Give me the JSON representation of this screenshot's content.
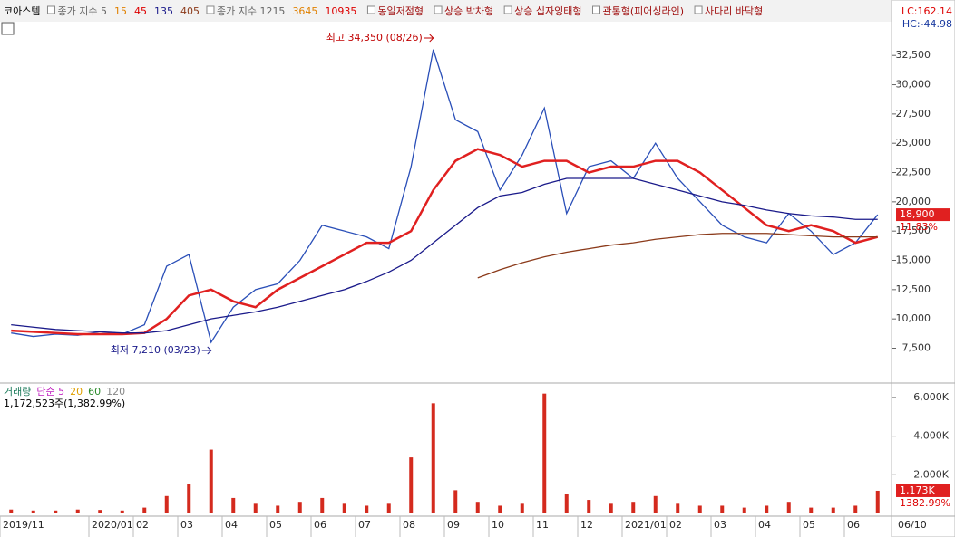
{
  "toolbar": {
    "symbol": "코아스템",
    "items": [
      "15",
      "종가 지수 1215",
      "3645",
      "10935"
    ],
    "patterns": [
      "동일저점형",
      "상승 박차형",
      "상승 십자잉태형",
      "관통형(피어싱라인)",
      "사다리 바닥형"
    ],
    "lc": "LC:162.14",
    "hc": "HC:-44.98"
  },
  "chart_data": [
    {
      "type": "line",
      "categories": [
        "2019/11",
        null,
        null,
        null,
        "2020/01",
        null,
        "02",
        null,
        "03",
        null,
        "04",
        null,
        "05",
        null,
        "06",
        null,
        "07",
        null,
        "08",
        null,
        "09",
        null,
        "10",
        null,
        "11",
        null,
        "12",
        null,
        "2021/01",
        null,
        "02",
        null,
        "03",
        null,
        "04",
        null,
        "05",
        null,
        "06",
        null
      ],
      "last_date": "06/10",
      "series": [
        {
          "name": "종가 지수 5",
          "color": "#2a4fb8",
          "values": [
            8800,
            8500,
            8700,
            8600,
            8900,
            8700,
            9500,
            14500,
            15500,
            8000,
            11000,
            12500,
            13000,
            15000,
            18000,
            17500,
            17000,
            16000,
            23000,
            33000,
            27000,
            26000,
            21000,
            24000,
            28000,
            19000,
            23000,
            23500,
            22000,
            25000,
            22000,
            20000,
            18000,
            17000,
            16500,
            19000,
            17500,
            15500,
            16500,
            18900
          ]
        },
        {
          "name": "45",
          "color": "#e02020",
          "values": [
            9000,
            8900,
            8800,
            8700,
            8700,
            8700,
            8800,
            10000,
            12000,
            12500,
            11500,
            11000,
            12500,
            13500,
            14500,
            15500,
            16500,
            16500,
            17500,
            21000,
            23500,
            24500,
            24000,
            23000,
            23500,
            23500,
            22500,
            23000,
            23000,
            23500,
            23500,
            22500,
            21000,
            19500,
            18000,
            17500,
            18000,
            17500,
            16500,
            17000
          ]
        },
        {
          "name": "135",
          "color": "#1a1a8a",
          "values": [
            9500,
            9300,
            9100,
            9000,
            8900,
            8800,
            8800,
            9000,
            9500,
            10000,
            10300,
            10600,
            11000,
            11500,
            12000,
            12500,
            13200,
            14000,
            15000,
            16500,
            18000,
            19500,
            20500,
            20800,
            21500,
            22000,
            22000,
            22000,
            22000,
            21500,
            21000,
            20500,
            20000,
            19700,
            19300,
            19000,
            18800,
            18700,
            18500,
            18500
          ]
        },
        {
          "name": "405",
          "color": "#8b3a1a",
          "values": [
            null,
            null,
            null,
            null,
            null,
            null,
            null,
            null,
            null,
            null,
            null,
            null,
            null,
            null,
            null,
            null,
            null,
            null,
            null,
            null,
            null,
            13500,
            14200,
            14800,
            15300,
            15700,
            16000,
            16300,
            16500,
            16800,
            17000,
            17200,
            17300,
            17300,
            17300,
            17200,
            17100,
            17000,
            17000,
            17000
          ]
        }
      ],
      "ylim": [
        4600,
        35300
      ],
      "yticks": [
        {
          "value": 7500,
          "label": "7,500"
        },
        {
          "value": 10000,
          "label": "10,000"
        },
        {
          "value": 12500,
          "label": "12,500"
        },
        {
          "value": 15000,
          "label": "15,000"
        },
        {
          "value": 17500,
          "label": "17,500"
        },
        {
          "value": 20000,
          "label": "20,000"
        },
        {
          "value": 22500,
          "label": "22,500"
        },
        {
          "value": 25000,
          "label": "25,000"
        },
        {
          "value": 27500,
          "label": "27,500"
        },
        {
          "value": 30000,
          "label": "30,000"
        },
        {
          "value": 32500,
          "label": "32,500"
        }
      ],
      "annotations": [
        "최고 34,350 (08/26)",
        "최저 7,210 (03/23)"
      ],
      "last_label": "18,900",
      "last_change": "11.83%"
    },
    {
      "type": "bar",
      "title": "1,172,523주(1,382.99%)",
      "series": [
        {
          "name": "거래량",
          "color": "#d42a1e",
          "values": [
            200,
            150,
            150,
            200,
            180,
            150,
            300,
            900,
            1500,
            3300,
            800,
            500,
            400,
            600,
            800,
            500,
            400,
            500,
            2900,
            5700,
            1200,
            600,
            400,
            500,
            6200,
            1000,
            700,
            500,
            600,
            900,
            500,
            400,
            400,
            300,
            400,
            600,
            300,
            300,
            400,
            1173
          ]
        }
      ],
      "legend_items": [
        "단순 5",
        "20",
        "60",
        "120"
      ],
      "ylim": [
        0,
        6700
      ],
      "yticks": [
        {
          "value": 2000,
          "label": "2,000K"
        },
        {
          "value": 4000,
          "label": "4,000K"
        },
        {
          "value": 6000,
          "label": "6,000K"
        }
      ],
      "last_label": "1,173K",
      "last_change": "1382.99%"
    }
  ]
}
